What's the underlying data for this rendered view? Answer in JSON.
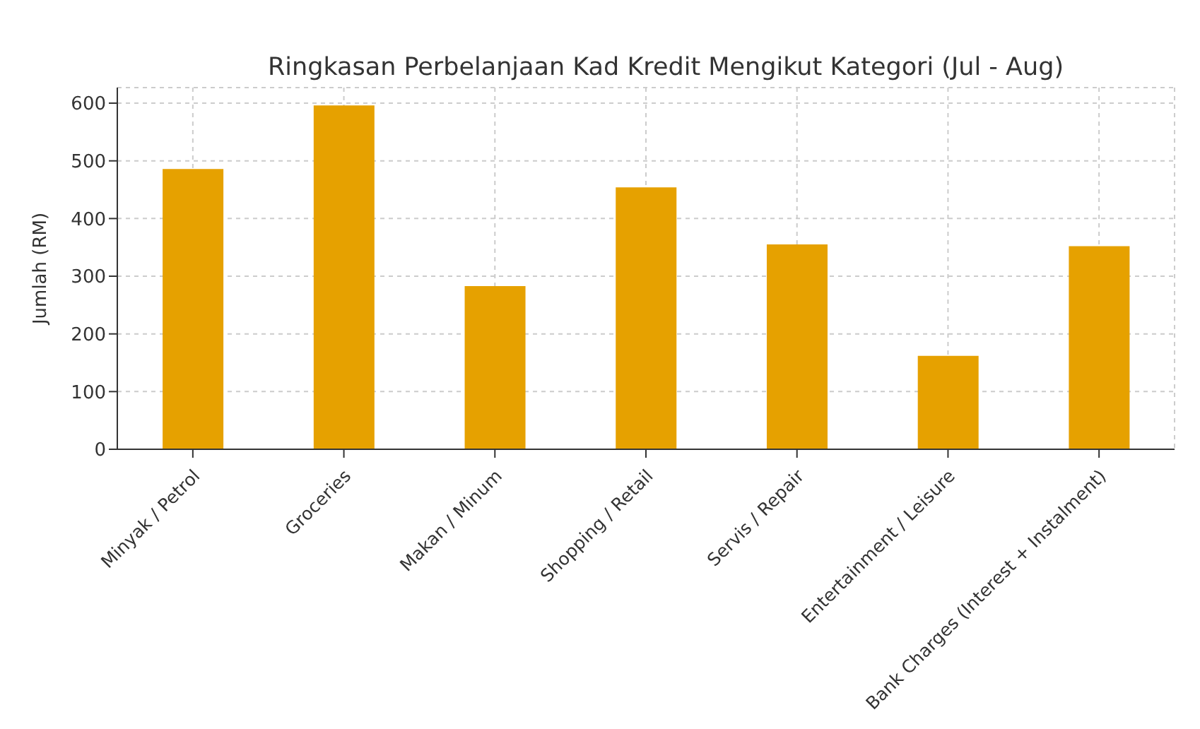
{
  "chart_data": {
    "type": "bar",
    "title": "Ringkasan Perbelanjaan Kad Kredit Mengikut Kategori (Jul - Aug)",
    "ylabel": "Jumlah (RM)",
    "categories": [
      "Minyak / Petrol",
      "Groceries",
      "Makan / Minum",
      "Shopping / Retail",
      "Servis / Repair",
      "Entertainment / Leisure",
      "Bank Charges (Interest + Instalment)"
    ],
    "values": [
      486,
      596,
      283,
      454,
      355,
      162,
      352
    ],
    "color": "#e6a100",
    "ylim": [
      0,
      627
    ],
    "yticks": [
      0,
      100,
      200,
      300,
      400,
      500,
      600
    ],
    "grid": true
  }
}
